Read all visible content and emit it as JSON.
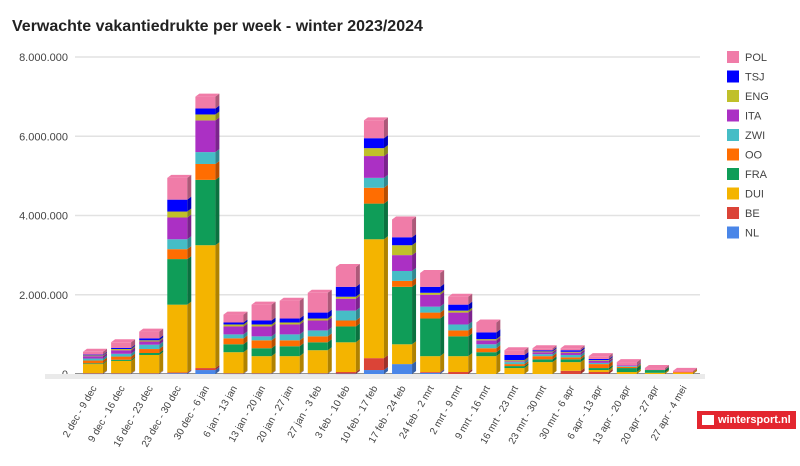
{
  "chart_data": {
    "type": "bar",
    "stacked": true,
    "title": "Verwachte vakantiedrukte per week - winter 2023/2024",
    "xlabel": "",
    "ylabel": "",
    "ylim": [
      0,
      8000000
    ],
    "yticks": [
      0,
      2000000,
      4000000,
      6000000,
      8000000
    ],
    "ytick_labels": [
      "0",
      "2.000.000",
      "4.000.000",
      "6.000.000",
      "8.000.000"
    ],
    "grid": true,
    "legend_position": "right",
    "categories": [
      "2 dec - 9 dec",
      "9 dec - 16 dec",
      "16 dec - 23 dec",
      "23 dec - 30 dec",
      "30 dec - 6 jan",
      "6 jan - 13 jan",
      "13 jan - 20 jan",
      "20 jan - 27 jan",
      "27 jan - 3 feb",
      "3 feb - 10 feb",
      "10 feb - 17 feb",
      "17 feb - 24 feb",
      "24 feb - 2 mrt",
      "2 mrt - 9 mrt",
      "9 mrt - 16 mrt",
      "16 mrt - 23 mrt",
      "23 mrt - 30 mrt",
      "30 mrt - 6 apr",
      "6 apr - 13 apr",
      "13 apr - 20 apr",
      "20 apr - 27 apr",
      "27 apr - 4 mei"
    ],
    "series": [
      {
        "name": "NL",
        "color": "#4a86e8",
        "values": [
          10000,
          10000,
          10000,
          20000,
          100000,
          10000,
          10000,
          10000,
          10000,
          10000,
          100000,
          250000,
          30000,
          0,
          0,
          0,
          0,
          0,
          0,
          0,
          0,
          0
        ]
      },
      {
        "name": "BE",
        "color": "#db4437",
        "values": [
          10000,
          10000,
          10000,
          20000,
          50000,
          10000,
          10000,
          10000,
          10000,
          40000,
          300000,
          0,
          20000,
          50000,
          0,
          0,
          0,
          80000,
          50000,
          0,
          0,
          0
        ]
      },
      {
        "name": "DUI",
        "color": "#f4b400",
        "values": [
          230000,
          310000,
          460000,
          1710000,
          3100000,
          530000,
          430000,
          430000,
          580000,
          750000,
          3000000,
          500000,
          400000,
          400000,
          450000,
          150000,
          300000,
          220000,
          50000,
          50000,
          30000,
          30000
        ]
      },
      {
        "name": "FRA",
        "color": "#0f9d58",
        "values": [
          20000,
          30000,
          50000,
          1150000,
          1650000,
          200000,
          200000,
          250000,
          200000,
          400000,
          900000,
          1450000,
          950000,
          500000,
          100000,
          50000,
          70000,
          70000,
          50000,
          100000,
          70000,
          0
        ]
      },
      {
        "name": "OO",
        "color": "#ff6d01",
        "values": [
          70000,
          80000,
          100000,
          250000,
          400000,
          150000,
          200000,
          150000,
          150000,
          150000,
          400000,
          150000,
          150000,
          150000,
          100000,
          50000,
          80000,
          50000,
          100000,
          30000,
          0,
          20000
        ]
      },
      {
        "name": "ZWI",
        "color": "#46bdc6",
        "values": [
          50000,
          70000,
          110000,
          250000,
          300000,
          100000,
          100000,
          150000,
          150000,
          250000,
          250000,
          250000,
          150000,
          150000,
          100000,
          50000,
          50000,
          60000,
          30000,
          20000,
          0,
          0
        ]
      },
      {
        "name": "ITA",
        "color": "#ab30c4",
        "values": [
          60000,
          90000,
          80000,
          550000,
          800000,
          200000,
          250000,
          250000,
          250000,
          300000,
          550000,
          400000,
          300000,
          300000,
          100000,
          20000,
          50000,
          60000,
          50000,
          20000,
          0,
          0
        ]
      },
      {
        "name": "ENG",
        "color": "#c0c02a",
        "values": [
          20000,
          30000,
          30000,
          150000,
          150000,
          50000,
          50000,
          50000,
          50000,
          50000,
          200000,
          250000,
          50000,
          50000,
          30000,
          30000,
          20000,
          20000,
          20000,
          0,
          0,
          0
        ]
      },
      {
        "name": "TSJ",
        "color": "#0000ff",
        "values": [
          20000,
          30000,
          50000,
          300000,
          150000,
          50000,
          100000,
          100000,
          150000,
          250000,
          250000,
          200000,
          150000,
          150000,
          170000,
          130000,
          30000,
          40000,
          30000,
          0,
          0,
          0
        ]
      },
      {
        "name": "POL",
        "color": "#f07ca8",
        "values": [
          70000,
          140000,
          170000,
          550000,
          300000,
          200000,
          400000,
          450000,
          500000,
          500000,
          450000,
          450000,
          350000,
          200000,
          250000,
          120000,
          50000,
          50000,
          70000,
          80000,
          50000,
          30000
        ]
      }
    ]
  },
  "logo_text": "wintersport.nl"
}
